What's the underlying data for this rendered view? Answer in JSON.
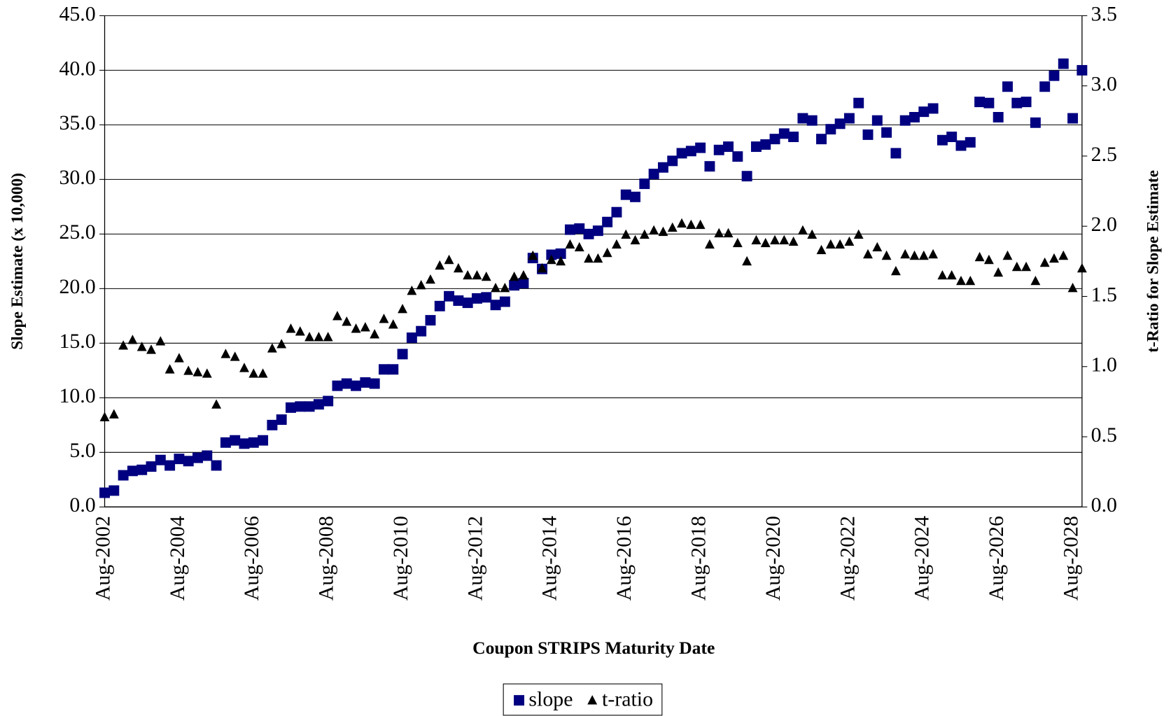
{
  "chart_data": {
    "type": "scatter",
    "x_label": "Coupon STRIPS Maturity Date",
    "y_label": "Slope Estimate (x 10,000)",
    "y2_label": "t-Ratio for Slope Estimate",
    "categories": [
      "Aug-2002",
      null,
      null,
      null,
      null,
      null,
      null,
      null,
      "Aug-2004",
      null,
      null,
      null,
      null,
      null,
      null,
      null,
      "Aug-2006",
      null,
      null,
      null,
      null,
      null,
      null,
      null,
      "Aug-2008",
      null,
      null,
      null,
      null,
      null,
      null,
      null,
      "Aug-2010",
      null,
      null,
      null,
      null,
      null,
      null,
      null,
      "Aug-2012",
      null,
      null,
      null,
      null,
      null,
      null,
      null,
      "Aug-2014",
      null,
      null,
      null,
      null,
      null,
      null,
      null,
      "Aug-2016",
      null,
      null,
      null,
      null,
      null,
      null,
      null,
      "Aug-2018",
      null,
      null,
      null,
      null,
      null,
      null,
      null,
      "Aug-2020",
      null,
      null,
      null,
      null,
      null,
      null,
      null,
      "Aug-2022",
      null,
      null,
      null,
      null,
      null,
      null,
      null,
      "Aug-2024",
      null,
      null,
      null,
      null,
      null,
      null,
      null,
      "Aug-2026",
      null,
      null,
      null,
      null,
      null,
      null,
      null,
      "Aug-2028",
      null
    ],
    "series": [
      {
        "name": "slope",
        "color": "#000080",
        "marker": "square",
        "axis": "y",
        "values": [
          1.3,
          1.5,
          2.9,
          3.3,
          3.4,
          3.7,
          4.3,
          3.8,
          4.4,
          4.2,
          4.5,
          4.7,
          3.8,
          5.9,
          6.1,
          5.8,
          5.9,
          6.1,
          7.5,
          8.0,
          9.1,
          9.2,
          9.2,
          9.4,
          9.7,
          11.1,
          11.3,
          11.1,
          11.4,
          11.3,
          12.6,
          12.6,
          14.0,
          15.5,
          16.1,
          17.1,
          18.4,
          19.3,
          18.9,
          18.7,
          19.1,
          19.2,
          18.5,
          18.8,
          20.3,
          20.5,
          22.8,
          21.8,
          23.1,
          23.2,
          25.4,
          25.5,
          25.0,
          25.3,
          26.1,
          27.0,
          28.6,
          28.4,
          29.6,
          30.5,
          31.1,
          31.7,
          32.4,
          32.6,
          32.9,
          31.2,
          32.7,
          33.0,
          32.1,
          30.3,
          33.0,
          33.2,
          33.7,
          34.2,
          33.9,
          35.6,
          35.4,
          33.7,
          34.6,
          35.1,
          35.6,
          37.0,
          34.1,
          35.4,
          34.3,
          32.4,
          35.4,
          35.7,
          36.2,
          36.5,
          33.6,
          33.9,
          33.1,
          33.4,
          37.1,
          37.0,
          35.7,
          38.5,
          37.0,
          37.1,
          35.2,
          38.5,
          39.5,
          40.6,
          35.6,
          40.0
        ]
      },
      {
        "name": "t-ratio",
        "color": "#000000",
        "marker": "triangle",
        "axis": "y2",
        "values": [
          0.64,
          0.66,
          1.15,
          1.19,
          1.14,
          1.12,
          1.18,
          0.98,
          1.06,
          0.97,
          0.96,
          0.95,
          0.73,
          1.09,
          1.07,
          0.99,
          0.95,
          0.95,
          1.13,
          1.16,
          1.27,
          1.25,
          1.21,
          1.21,
          1.21,
          1.36,
          1.32,
          1.27,
          1.28,
          1.23,
          1.34,
          1.3,
          1.41,
          1.54,
          1.58,
          1.62,
          1.72,
          1.76,
          1.7,
          1.65,
          1.65,
          1.64,
          1.56,
          1.56,
          1.64,
          1.65,
          1.79,
          1.7,
          1.76,
          1.75,
          1.87,
          1.85,
          1.77,
          1.77,
          1.81,
          1.87,
          1.94,
          1.9,
          1.94,
          1.97,
          1.96,
          1.99,
          2.02,
          2.01,
          2.01,
          1.87,
          1.95,
          1.95,
          1.88,
          1.75,
          1.9,
          1.88,
          1.9,
          1.9,
          1.89,
          1.97,
          1.94,
          1.83,
          1.87,
          1.87,
          1.89,
          1.94,
          1.8,
          1.85,
          1.79,
          1.68,
          1.8,
          1.79,
          1.79,
          1.8,
          1.65,
          1.65,
          1.61,
          1.61,
          1.78,
          1.76,
          1.67,
          1.79,
          1.71,
          1.71,
          1.61,
          1.74,
          1.77,
          1.79,
          1.56,
          1.7
        ]
      }
    ],
    "ylim": [
      0,
      45
    ],
    "yticks": [
      {
        "value": 0,
        "label": "0.0"
      },
      {
        "value": 5,
        "label": "5.0"
      },
      {
        "value": 10,
        "label": "10.0"
      },
      {
        "value": 15,
        "label": "15.0"
      },
      {
        "value": 20,
        "label": "20.0"
      },
      {
        "value": 25,
        "label": "25.0"
      },
      {
        "value": 30,
        "label": "30.0"
      },
      {
        "value": 35,
        "label": "35.0"
      },
      {
        "value": 40,
        "label": "40.0"
      },
      {
        "value": 45,
        "label": "45.0"
      }
    ],
    "y2lim": [
      0,
      3.5
    ],
    "y2ticks": [
      {
        "value": 0,
        "label": "0.0"
      },
      {
        "value": 0.5,
        "label": "0.5"
      },
      {
        "value": 1,
        "label": "1.0"
      },
      {
        "value": 1.5,
        "label": "1.5"
      },
      {
        "value": 2,
        "label": "2.0"
      },
      {
        "value": 2.5,
        "label": "2.5"
      },
      {
        "value": 3,
        "label": "3.0"
      },
      {
        "value": 3.5,
        "label": "3.5"
      }
    ],
    "grid": true,
    "legend": "bottom"
  }
}
